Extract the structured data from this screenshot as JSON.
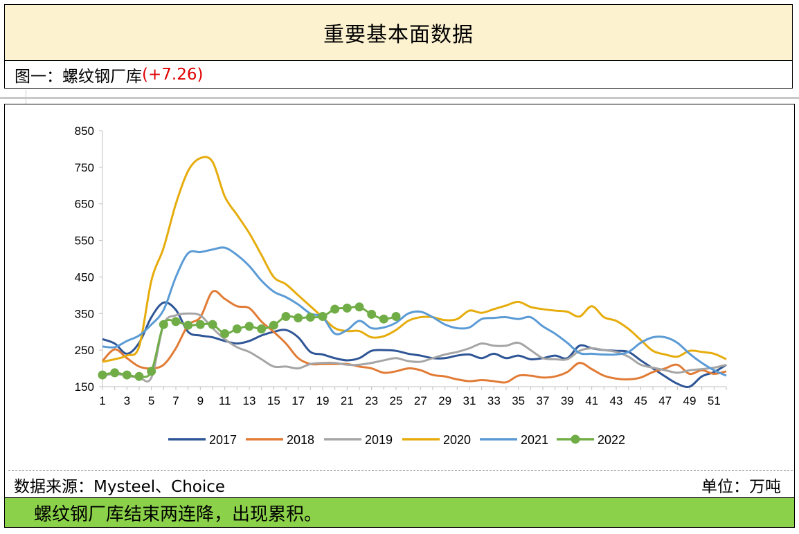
{
  "header": {
    "title": "重要基本面数据"
  },
  "subtitle": {
    "label": "图一：螺纹钢厂库",
    "change": "(+7.26)"
  },
  "source": "数据来源：Mysteel、Choice",
  "unit": "单位：万吨",
  "conclusion": "螺纹钢厂库结束两连降，出现累积。",
  "chart_data": {
    "type": "line",
    "title": "",
    "xlabel": "",
    "ylabel": "",
    "ylim": [
      150,
      850
    ],
    "yticks": [
      150,
      250,
      350,
      450,
      550,
      650,
      750,
      850
    ],
    "xlim": [
      1,
      52
    ],
    "xticks": [
      1,
      3,
      5,
      7,
      9,
      11,
      13,
      15,
      17,
      19,
      21,
      23,
      25,
      27,
      29,
      31,
      33,
      35,
      37,
      39,
      41,
      43,
      45,
      47,
      49,
      51
    ],
    "grid": false,
    "legend": "bottom",
    "series": [
      {
        "name": "2017",
        "color": "#2e5596",
        "marker": false,
        "x": [
          1,
          2,
          3,
          4,
          5,
          6,
          7,
          8,
          9,
          10,
          11,
          12,
          13,
          14,
          15,
          16,
          17,
          18,
          19,
          20,
          21,
          22,
          23,
          24,
          25,
          26,
          27,
          28,
          29,
          30,
          31,
          32,
          33,
          34,
          35,
          36,
          37,
          38,
          39,
          40,
          41,
          42,
          43,
          44,
          45,
          46,
          47,
          48,
          49,
          50,
          51,
          52
        ],
        "values": [
          280,
          268,
          240,
          270,
          340,
          380,
          360,
          300,
          290,
          285,
          275,
          268,
          275,
          290,
          300,
          305,
          285,
          245,
          238,
          228,
          222,
          228,
          248,
          250,
          248,
          240,
          235,
          228,
          228,
          235,
          238,
          228,
          240,
          228,
          235,
          225,
          228,
          235,
          228,
          262,
          255,
          250,
          248,
          245,
          222,
          200,
          178,
          158,
          150,
          178,
          190,
          210
        ]
      },
      {
        "name": "2018",
        "color": "#e17b35",
        "marker": false,
        "x": [
          1,
          2,
          3,
          4,
          5,
          6,
          7,
          8,
          9,
          10,
          11,
          12,
          13,
          14,
          15,
          16,
          17,
          18,
          19,
          20,
          21,
          22,
          23,
          24,
          25,
          26,
          27,
          28,
          29,
          30,
          31,
          32,
          33,
          34,
          35,
          36,
          37,
          38,
          39,
          40,
          41,
          42,
          43,
          44,
          45,
          46,
          47,
          48,
          49,
          50,
          51,
          52
        ],
        "values": [
          220,
          252,
          228,
          205,
          200,
          210,
          255,
          318,
          340,
          410,
          390,
          370,
          365,
          328,
          300,
          268,
          228,
          212,
          212,
          212,
          212,
          205,
          200,
          188,
          192,
          200,
          195,
          182,
          178,
          170,
          165,
          168,
          165,
          162,
          180,
          180,
          175,
          178,
          190,
          215,
          198,
          180,
          172,
          170,
          175,
          190,
          200,
          210,
          185,
          195,
          185,
          192
        ]
      },
      {
        "name": "2019",
        "color": "#a5a5a5",
        "marker": false,
        "x": [
          1,
          2,
          3,
          4,
          5,
          6,
          7,
          8,
          9,
          10,
          11,
          12,
          13,
          14,
          15,
          16,
          17,
          18,
          19,
          20,
          21,
          22,
          23,
          24,
          25,
          26,
          27,
          28,
          29,
          30,
          31,
          32,
          33,
          34,
          35,
          36,
          37,
          38,
          39,
          40,
          41,
          42,
          43,
          44,
          45,
          46,
          47,
          48,
          49,
          50,
          51,
          52
        ],
        "values": [
          180,
          185,
          180,
          175,
          175,
          320,
          345,
          350,
          345,
          310,
          280,
          258,
          245,
          225,
          205,
          205,
          200,
          212,
          215,
          215,
          210,
          210,
          215,
          222,
          228,
          220,
          218,
          228,
          238,
          245,
          255,
          268,
          262,
          262,
          270,
          250,
          228,
          225,
          225,
          248,
          255,
          250,
          245,
          232,
          210,
          202,
          195,
          188,
          195,
          198,
          202,
          210
        ]
      },
      {
        "name": "2020",
        "color": "#e6ac0c",
        "marker": false,
        "x": [
          1,
          2,
          3,
          4,
          5,
          6,
          7,
          8,
          9,
          10,
          11,
          12,
          13,
          14,
          15,
          16,
          17,
          18,
          19,
          20,
          21,
          22,
          23,
          24,
          25,
          26,
          27,
          28,
          29,
          30,
          31,
          32,
          33,
          34,
          35,
          36,
          37,
          38,
          39,
          40,
          41,
          42,
          43,
          44,
          45,
          46,
          47,
          48,
          49,
          50,
          51,
          52
        ],
        "values": [
          218,
          225,
          235,
          260,
          440,
          530,
          650,
          740,
          775,
          765,
          670,
          620,
          570,
          510,
          450,
          430,
          400,
          370,
          340,
          310,
          302,
          302,
          285,
          288,
          305,
          330,
          340,
          340,
          332,
          335,
          358,
          352,
          362,
          372,
          382,
          368,
          362,
          358,
          355,
          342,
          370,
          340,
          330,
          308,
          278,
          248,
          238,
          232,
          248,
          245,
          240,
          225
        ]
      },
      {
        "name": "2021",
        "color": "#5b9bd5",
        "marker": false,
        "x": [
          1,
          2,
          3,
          4,
          5,
          6,
          7,
          8,
          9,
          10,
          11,
          12,
          13,
          14,
          15,
          16,
          17,
          18,
          19,
          20,
          21,
          22,
          23,
          24,
          25,
          26,
          27,
          28,
          29,
          30,
          31,
          32,
          33,
          34,
          35,
          36,
          37,
          38,
          39,
          40,
          41,
          42,
          43,
          44,
          45,
          46,
          47,
          48,
          49,
          50,
          51,
          52
        ],
        "values": [
          260,
          258,
          275,
          290,
          320,
          360,
          450,
          515,
          518,
          525,
          530,
          510,
          480,
          440,
          410,
          395,
          375,
          350,
          340,
          295,
          305,
          330,
          310,
          312,
          325,
          350,
          355,
          340,
          320,
          310,
          312,
          335,
          338,
          340,
          335,
          340,
          315,
          295,
          270,
          242,
          240,
          238,
          238,
          245,
          270,
          285,
          285,
          270,
          240,
          215,
          195,
          180
        ]
      },
      {
        "name": "2022",
        "color": "#70ad47",
        "marker": true,
        "x": [
          1,
          2,
          3,
          4,
          5,
          6,
          7,
          8,
          9,
          10,
          11,
          12,
          13,
          14,
          15,
          16,
          17,
          18,
          19,
          20,
          21,
          22,
          23,
          24,
          25
        ],
        "values": [
          182,
          188,
          182,
          178,
          192,
          320,
          328,
          318,
          320,
          320,
          295,
          308,
          315,
          308,
          318,
          342,
          338,
          340,
          342,
          362,
          365,
          368,
          348,
          335,
          342
        ]
      }
    ]
  }
}
